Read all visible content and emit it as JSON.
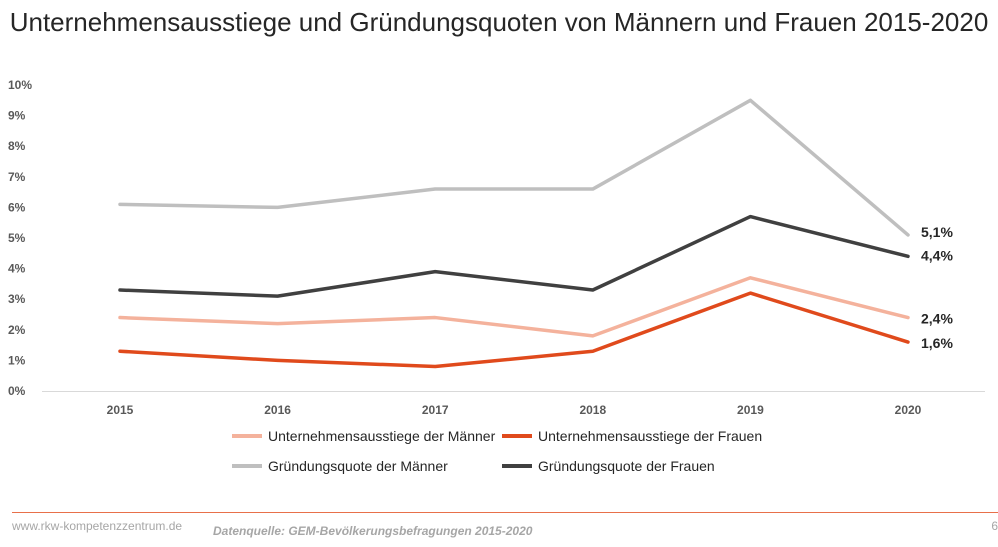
{
  "chart_data": {
    "type": "line",
    "title": "Unternehmensausstiege und Gründungsquoten von Männern und Frauen 2015-2020",
    "categories": [
      "2015",
      "2016",
      "2017",
      "2018",
      "2019",
      "2020"
    ],
    "y_ticks": [
      "0%",
      "1%",
      "2%",
      "3%",
      "4%",
      "5%",
      "6%",
      "7%",
      "8%",
      "9%",
      "10%"
    ],
    "ylim": [
      0,
      10
    ],
    "grid": false,
    "legend_position": "bottom",
    "series": [
      {
        "name": "Gründungsquote der Männer",
        "values": [
          6.1,
          6.0,
          6.6,
          6.6,
          9.5,
          5.1
        ],
        "color": "#bfbfbf",
        "end_label": "5,1%"
      },
      {
        "name": "Gründungsquote der Frauen",
        "values": [
          3.3,
          3.1,
          3.9,
          3.3,
          5.7,
          4.4
        ],
        "color": "#404040",
        "end_label": "4,4%"
      },
      {
        "name": "Unternehmensausstiege der Männer",
        "values": [
          2.4,
          2.2,
          2.4,
          1.8,
          3.7,
          2.4
        ],
        "color": "#f4b29c",
        "end_label": "2,4%"
      },
      {
        "name": "Unternehmensausstiege der Frauen",
        "values": [
          1.3,
          1.0,
          0.8,
          1.3,
          3.2,
          1.6
        ],
        "color": "#e04a1c",
        "end_label": "1,6%"
      }
    ]
  },
  "footer": {
    "website": "www.rkw-kompetenzzentrum.de",
    "source": "Datenquelle: GEM-Bevölkerungsbefragungen 2015-2020",
    "page": "6"
  }
}
